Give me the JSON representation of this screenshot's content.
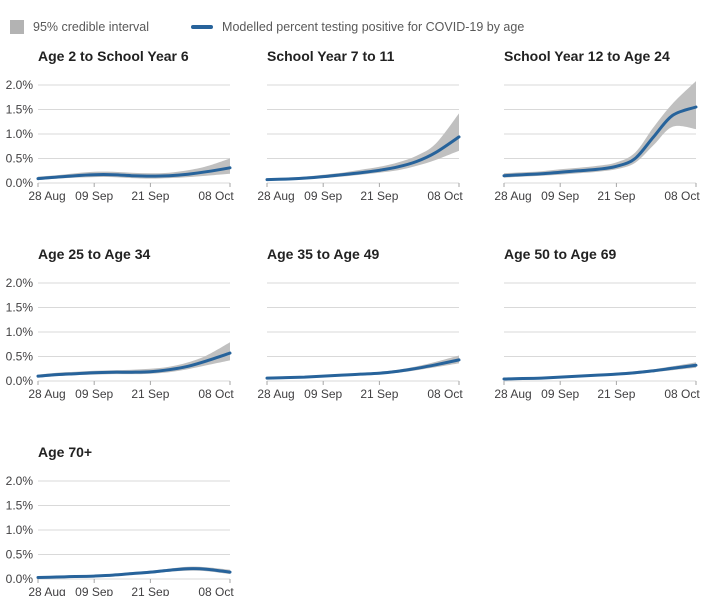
{
  "legend": {
    "ci_label": "95% credible interval",
    "line_label": "Modelled percent testing positive for COVID-19 by age"
  },
  "colors": {
    "line": "#27639b",
    "band": "#c0c0c0",
    "legend_square": "#b3b3b3",
    "grid": "#d9d9d9",
    "tick": "#a6a6a6",
    "axis_text": "#414042",
    "title_text": "#222222",
    "legend_text": "#595959"
  },
  "axes": {
    "x_tick_labels": [
      "28 Aug",
      "09 Sep",
      "21 Sep",
      "08 Oct"
    ],
    "x_tick_days": [
      0,
      12,
      24,
      41
    ],
    "x_range_days": [
      0,
      41
    ],
    "y_tick_labels": [
      "0.0%",
      "0.5%",
      "1.0%",
      "1.5%",
      "2.0%"
    ],
    "y_tick_values": [
      0,
      0.5,
      1.0,
      1.5,
      2.0
    ],
    "ylim": [
      0,
      2.15
    ],
    "grid": true,
    "y_unit": "percent"
  },
  "chart_data": [
    {
      "type": "line",
      "title": "Age 2 to School Year 6",
      "show_y_labels": true,
      "x_days": [
        0,
        4,
        8,
        12,
        16,
        20,
        24,
        28,
        32,
        36,
        41
      ],
      "mean": [
        0.09,
        0.12,
        0.15,
        0.17,
        0.17,
        0.15,
        0.14,
        0.15,
        0.18,
        0.23,
        0.31
      ],
      "lower": [
        0.06,
        0.09,
        0.11,
        0.12,
        0.12,
        0.1,
        0.09,
        0.1,
        0.12,
        0.15,
        0.19
      ],
      "upper": [
        0.13,
        0.16,
        0.2,
        0.23,
        0.23,
        0.21,
        0.2,
        0.21,
        0.26,
        0.34,
        0.5
      ]
    },
    {
      "type": "line",
      "title": "School Year 7 to 11",
      "show_y_labels": false,
      "x_days": [
        0,
        4,
        8,
        12,
        16,
        20,
        24,
        28,
        32,
        36,
        41
      ],
      "mean": [
        0.07,
        0.08,
        0.1,
        0.13,
        0.17,
        0.21,
        0.26,
        0.33,
        0.44,
        0.62,
        0.94
      ],
      "lower": [
        0.05,
        0.06,
        0.08,
        0.1,
        0.13,
        0.17,
        0.21,
        0.26,
        0.35,
        0.47,
        0.66
      ],
      "upper": [
        0.09,
        0.11,
        0.13,
        0.17,
        0.21,
        0.27,
        0.33,
        0.42,
        0.56,
        0.8,
        1.42
      ]
    },
    {
      "type": "line",
      "title": "School Year 12 to Age 24",
      "show_y_labels": false,
      "x_days": [
        0,
        4,
        8,
        12,
        16,
        20,
        24,
        28,
        32,
        36,
        41
      ],
      "mean": [
        0.15,
        0.17,
        0.19,
        0.22,
        0.25,
        0.28,
        0.34,
        0.5,
        0.95,
        1.38,
        1.55
      ],
      "lower": [
        0.11,
        0.13,
        0.15,
        0.17,
        0.2,
        0.23,
        0.28,
        0.41,
        0.78,
        1.15,
        1.1
      ],
      "upper": [
        0.2,
        0.22,
        0.24,
        0.28,
        0.31,
        0.35,
        0.42,
        0.62,
        1.15,
        1.62,
        2.08
      ]
    },
    {
      "type": "line",
      "title": "Age 25 to Age 34",
      "show_y_labels": true,
      "x_days": [
        0,
        4,
        8,
        12,
        16,
        20,
        24,
        28,
        32,
        36,
        41
      ],
      "mean": [
        0.1,
        0.13,
        0.15,
        0.17,
        0.18,
        0.18,
        0.19,
        0.23,
        0.3,
        0.41,
        0.57
      ],
      "lower": [
        0.07,
        0.1,
        0.12,
        0.13,
        0.14,
        0.14,
        0.15,
        0.18,
        0.24,
        0.32,
        0.42
      ],
      "upper": [
        0.13,
        0.17,
        0.19,
        0.21,
        0.22,
        0.23,
        0.25,
        0.29,
        0.38,
        0.52,
        0.79
      ]
    },
    {
      "type": "line",
      "title": "Age 35 to Age 49",
      "show_y_labels": false,
      "x_days": [
        0,
        4,
        8,
        12,
        16,
        20,
        24,
        28,
        32,
        36,
        41
      ],
      "mean": [
        0.06,
        0.07,
        0.08,
        0.1,
        0.12,
        0.14,
        0.16,
        0.2,
        0.26,
        0.33,
        0.43
      ],
      "lower": [
        0.05,
        0.06,
        0.07,
        0.08,
        0.1,
        0.12,
        0.14,
        0.17,
        0.22,
        0.28,
        0.36
      ],
      "upper": [
        0.08,
        0.09,
        0.1,
        0.12,
        0.14,
        0.16,
        0.19,
        0.23,
        0.3,
        0.39,
        0.52
      ]
    },
    {
      "type": "line",
      "title": "Age 50 to Age 69",
      "show_y_labels": false,
      "x_days": [
        0,
        4,
        8,
        12,
        16,
        20,
        24,
        28,
        32,
        36,
        41
      ],
      "mean": [
        0.04,
        0.05,
        0.06,
        0.08,
        0.1,
        0.12,
        0.14,
        0.17,
        0.21,
        0.26,
        0.32
      ],
      "lower": [
        0.03,
        0.04,
        0.05,
        0.06,
        0.08,
        0.1,
        0.12,
        0.14,
        0.18,
        0.22,
        0.27
      ],
      "upper": [
        0.05,
        0.06,
        0.08,
        0.09,
        0.12,
        0.14,
        0.17,
        0.2,
        0.24,
        0.3,
        0.38
      ]
    },
    {
      "type": "line",
      "title": "Age 70+",
      "show_y_labels": true,
      "x_days": [
        0,
        4,
        8,
        12,
        16,
        20,
        24,
        28,
        32,
        36,
        41
      ],
      "mean": [
        0.03,
        0.04,
        0.05,
        0.06,
        0.08,
        0.11,
        0.14,
        0.18,
        0.21,
        0.2,
        0.14
      ],
      "lower": [
        0.02,
        0.03,
        0.03,
        0.05,
        0.06,
        0.09,
        0.11,
        0.15,
        0.17,
        0.16,
        0.1
      ],
      "upper": [
        0.05,
        0.06,
        0.07,
        0.08,
        0.1,
        0.14,
        0.17,
        0.21,
        0.25,
        0.24,
        0.19
      ]
    }
  ]
}
